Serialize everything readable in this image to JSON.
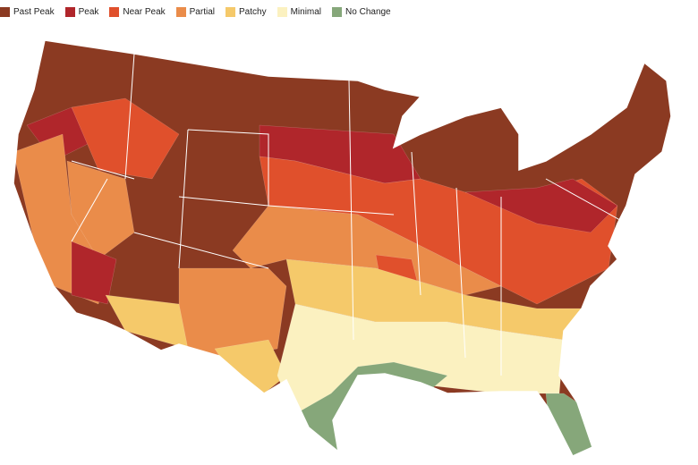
{
  "legend": {
    "items": [
      {
        "label": "Past Peak",
        "color": "#8b3a22"
      },
      {
        "label": "Peak",
        "color": "#b0262b"
      },
      {
        "label": "Near Peak",
        "color": "#e0502c"
      },
      {
        "label": "Partial",
        "color": "#ea8c4a"
      },
      {
        "label": "Patchy",
        "color": "#f5c96a"
      },
      {
        "label": "Minimal",
        "color": "#fbf1c0"
      },
      {
        "label": "No Change",
        "color": "#86a77a"
      }
    ]
  }
}
